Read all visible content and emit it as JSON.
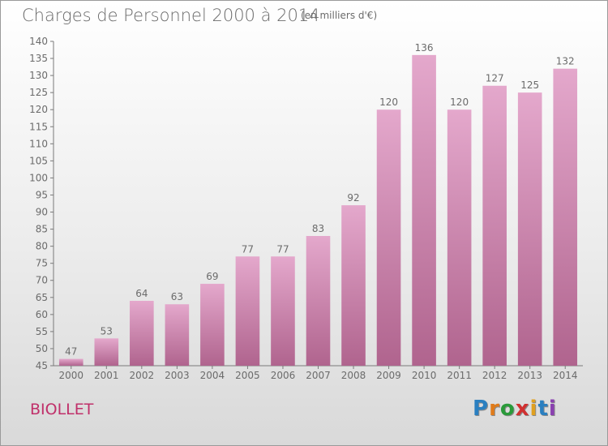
{
  "title": "Charges de Personnel 2000 à 2014",
  "subtitle": "(en milliers d'€)",
  "commune": "BIOLLET",
  "brand": {
    "letters": [
      "P",
      "r",
      "o",
      "x",
      "i",
      "t",
      "i"
    ],
    "colors": [
      "#2a7fc0",
      "#e07b1a",
      "#2a9a3a",
      "#d03030",
      "#e0a020",
      "#2a7fc0",
      "#8a40b0"
    ]
  },
  "colors": {
    "bar_top": "#e4a8cc",
    "bar_bottom": "#b0648e",
    "text": "#6b6b6b",
    "commune": "#c0306a"
  },
  "chart_data": {
    "type": "bar",
    "title": "Charges de Personnel 2000 à 2014",
    "subtitle": "(en milliers d'€)",
    "categories": [
      "2000",
      "2001",
      "2002",
      "2003",
      "2004",
      "2005",
      "2006",
      "2007",
      "2008",
      "2009",
      "2010",
      "2011",
      "2012",
      "2013",
      "2014"
    ],
    "values": [
      47,
      53,
      64,
      63,
      69,
      77,
      77,
      83,
      92,
      120,
      136,
      120,
      127,
      125,
      132
    ],
    "ylim": [
      45,
      140
    ],
    "yticks": [
      45,
      50,
      55,
      60,
      65,
      70,
      75,
      80,
      85,
      90,
      95,
      100,
      105,
      110,
      115,
      120,
      125,
      130,
      135,
      140
    ],
    "grid": false,
    "data_labels": true
  }
}
